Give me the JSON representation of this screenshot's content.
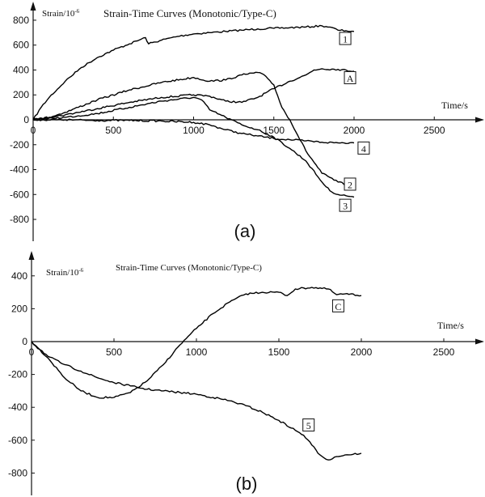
{
  "chart_data": [
    {
      "type": "line",
      "panel_label": "(a)",
      "title": "Strain-Time Curves (Monotonic/Type-C)",
      "ylabel": "Strain/10",
      "ylabel_sup": "-6",
      "xlabel": "Time/s",
      "xlim": [
        0,
        2700
      ],
      "ylim": [
        -900,
        850
      ],
      "xticks": [
        0,
        500,
        1000,
        1500,
        2000,
        2500
      ],
      "yticks": [
        -800,
        -600,
        -400,
        -200,
        0,
        200,
        400,
        600,
        800
      ],
      "series": [
        {
          "name": "1",
          "x": [
            0,
            50,
            100,
            200,
            300,
            400,
            500,
            600,
            700,
            720,
            800,
            900,
            1000,
            1100,
            1200,
            1300,
            1400,
            1500,
            1600,
            1700,
            1800,
            1850,
            1900,
            1950,
            2000
          ],
          "y": [
            0,
            100,
            180,
            310,
            420,
            500,
            560,
            610,
            660,
            610,
            640,
            670,
            690,
            700,
            710,
            720,
            730,
            735,
            740,
            745,
            755,
            745,
            720,
            715,
            710
          ]
        },
        {
          "name": "A",
          "x": [
            0,
            200,
            400,
            600,
            800,
            1000,
            1100,
            1200,
            1300,
            1400,
            1500,
            1600,
            1700,
            1750,
            1800,
            1900,
            2000
          ],
          "y": [
            0,
            40,
            90,
            140,
            180,
            200,
            190,
            150,
            140,
            180,
            250,
            310,
            360,
            400,
            410,
            405,
            390
          ]
        },
        {
          "name": "2",
          "x": [
            0,
            100,
            200,
            400,
            600,
            800,
            1000,
            1100,
            1200,
            1300,
            1400,
            1450,
            1500,
            1550,
            1600,
            1700,
            1800,
            1900,
            2000
          ],
          "y": [
            0,
            20,
            60,
            160,
            240,
            300,
            340,
            310,
            320,
            360,
            380,
            350,
            280,
            100,
            0,
            -250,
            -430,
            -500,
            -540
          ]
        },
        {
          "name": "3",
          "x": [
            0,
            200,
            400,
            600,
            800,
            1000,
            1050,
            1100,
            1200,
            1300,
            1400,
            1500,
            1600,
            1700,
            1800,
            1850,
            1900,
            1950,
            2000
          ],
          "y": [
            0,
            20,
            50,
            100,
            150,
            180,
            160,
            80,
            20,
            -40,
            -80,
            -140,
            -230,
            -330,
            -500,
            -570,
            -600,
            -610,
            -620
          ]
        },
        {
          "name": "4",
          "x": [
            0,
            200,
            400,
            600,
            800,
            1000,
            1100,
            1200,
            1300,
            1400,
            1500,
            1600,
            1700,
            1800,
            1900,
            2000
          ],
          "y": [
            0,
            0,
            -5,
            -5,
            -10,
            -20,
            -40,
            -80,
            -110,
            -130,
            -150,
            -160,
            -170,
            -180,
            -185,
            -185
          ]
        }
      ]
    },
    {
      "type": "line",
      "panel_label": "(b)",
      "title": "Strain-Time Curves (Monotonic/Type-C)",
      "ylabel": "Strain/10",
      "ylabel_sup": "-6",
      "xlabel": "Time/s",
      "xlim": [
        0,
        2700
      ],
      "ylim": [
        -900,
        500
      ],
      "xticks": [
        0,
        500,
        1000,
        1500,
        2000,
        2500
      ],
      "yticks": [
        -800,
        -600,
        -400,
        -200,
        0,
        200,
        400
      ],
      "series": [
        {
          "name": "C",
          "x": [
            0,
            100,
            200,
            300,
            400,
            500,
            600,
            700,
            800,
            900,
            1000,
            1100,
            1200,
            1300,
            1400,
            1500,
            1550,
            1600,
            1700,
            1800,
            1850,
            1900,
            2000
          ],
          "y": [
            0,
            -100,
            -220,
            -300,
            -340,
            -340,
            -310,
            -240,
            -140,
            -20,
            80,
            170,
            240,
            290,
            300,
            300,
            280,
            320,
            330,
            320,
            285,
            290,
            280
          ]
        },
        {
          "name": "5",
          "x": [
            0,
            100,
            200,
            300,
            400,
            500,
            600,
            700,
            800,
            900,
            1000,
            1100,
            1200,
            1300,
            1400,
            1500,
            1600,
            1650,
            1700,
            1750,
            1800,
            1850,
            1900,
            2000
          ],
          "y": [
            0,
            -90,
            -140,
            -180,
            -220,
            -250,
            -270,
            -290,
            -300,
            -310,
            -320,
            -340,
            -360,
            -390,
            -430,
            -480,
            -540,
            -570,
            -630,
            -690,
            -720,
            -700,
            -690,
            -680
          ]
        }
      ]
    }
  ],
  "series_label_positions": {
    "0": {
      "1": [
        1945,
        650
      ],
      "A": [
        1975,
        335
      ],
      "2": [
        1975,
        -520
      ],
      "3": [
        1945,
        -690
      ],
      "4": [
        2060,
        -230
      ]
    },
    "1": {
      "C": [
        1860,
        215
      ],
      "5": [
        1680,
        -510
      ]
    }
  }
}
